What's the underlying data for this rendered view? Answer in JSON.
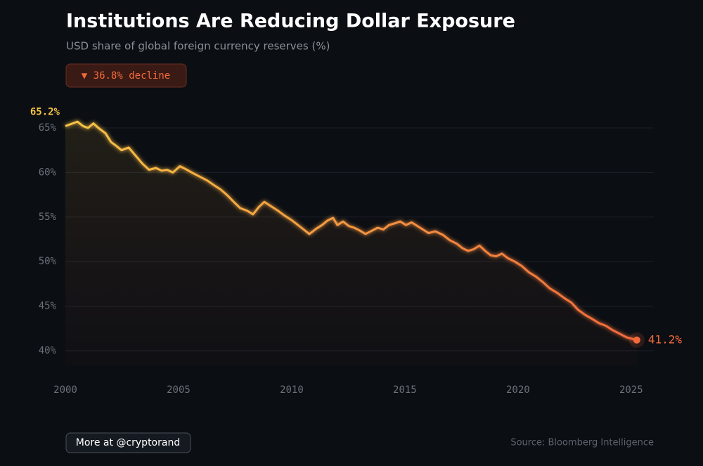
{
  "chart_data": {
    "type": "line",
    "title": "Institutions Are Reducing Dollar Exposure",
    "subtitle": "USD share of global foreign currency reserves (%)",
    "annotation": "▼ 36.8% decline",
    "x": [
      2000,
      2000.53,
      2000.78,
      2001.0,
      2001.24,
      2001.46,
      2001.77,
      2002.02,
      2002.24,
      2002.48,
      2002.8,
      2003.1,
      2003.4,
      2003.7,
      2004.0,
      2004.25,
      2004.5,
      2004.75,
      2005.06,
      2005.3,
      2005.65,
      2005.96,
      2006.27,
      2006.55,
      2006.86,
      2007.17,
      2007.48,
      2007.73,
      2008.04,
      2008.29,
      2008.54,
      2008.79,
      2009.1,
      2009.4,
      2009.66,
      2009.97,
      2010.28,
      2010.53,
      2010.78,
      2011.09,
      2011.34,
      2011.58,
      2011.83,
      2012.02,
      2012.27,
      2012.52,
      2012.76,
      2013.0,
      2013.26,
      2013.57,
      2013.8,
      2014.05,
      2014.3,
      2014.56,
      2014.8,
      2015.05,
      2015.3,
      2015.55,
      2015.8,
      2016.05,
      2016.35,
      2016.68,
      2016.99,
      2017.3,
      2017.55,
      2017.8,
      2018.05,
      2018.3,
      2018.55,
      2018.8,
      2019.04,
      2019.29,
      2019.54,
      2019.86,
      2020.17,
      2020.48,
      2020.8,
      2021.1,
      2021.4,
      2021.73,
      2022.05,
      2022.36,
      2022.65,
      2022.98,
      2023.26,
      2023.57,
      2023.88,
      2024.19,
      2024.5,
      2024.8,
      2025.25
    ],
    "series": [
      {
        "values": [
          65.2,
          65.7,
          65.2,
          65.0,
          65.5,
          65.0,
          64.4,
          63.4,
          63.0,
          62.5,
          62.8,
          61.9,
          61.0,
          60.3,
          60.5,
          60.2,
          60.3,
          60.0,
          60.7,
          60.4,
          59.9,
          59.5,
          59.1,
          58.6,
          58.1,
          57.4,
          56.6,
          56.0,
          55.7,
          55.3,
          56.1,
          56.7,
          56.2,
          55.7,
          55.2,
          54.7,
          54.1,
          53.6,
          53.1,
          53.7,
          54.1,
          54.6,
          54.9,
          54.1,
          54.5,
          54.0,
          53.8,
          53.5,
          53.1,
          53.5,
          53.8,
          53.6,
          54.1,
          54.3,
          54.5,
          54.1,
          54.4,
          54.0,
          53.6,
          53.2,
          53.4,
          53.0,
          52.4,
          52.0,
          51.5,
          51.2,
          51.4,
          51.8,
          51.2,
          50.7,
          50.6,
          50.9,
          50.4,
          50.0,
          49.5,
          48.8,
          48.3,
          47.7,
          47.0,
          46.5,
          45.9,
          45.4,
          44.6,
          44.0,
          43.6,
          43.1,
          42.8,
          42.3,
          41.9,
          41.5,
          41.2
        ],
        "value_labels": [
          "65.2%",
          null,
          null,
          null,
          null,
          null,
          null,
          null,
          null,
          null,
          null,
          null,
          null,
          null,
          null,
          null,
          null,
          null,
          null,
          null,
          null,
          null,
          null,
          null,
          null,
          null,
          null,
          null,
          null,
          null,
          null,
          null,
          null,
          null,
          null,
          null,
          null,
          null,
          null,
          null,
          null,
          null,
          null,
          null,
          null,
          null,
          null,
          null,
          null,
          null,
          null,
          null,
          null,
          null,
          null,
          null,
          null,
          null,
          null,
          null,
          null,
          null,
          null,
          null,
          null,
          null,
          null,
          null,
          null,
          null,
          null,
          null,
          null,
          null,
          null,
          null,
          null,
          null,
          null,
          null,
          null,
          null,
          null,
          null,
          null,
          null,
          null,
          null,
          null,
          null,
          "41.2%"
        ],
        "color_start": "#f6c445",
        "color_end": "#f26a3b"
      }
    ],
    "xlim": [
      2000,
      2026
    ],
    "xticks": [
      2000,
      2005,
      2010,
      2015,
      2020,
      2025
    ],
    "ylim": [
      38.4,
      66.4
    ],
    "yticks": [
      {
        "value": 40,
        "label": "40%"
      },
      {
        "value": 45,
        "label": "45%"
      },
      {
        "value": 50,
        "label": "50%"
      },
      {
        "value": 55,
        "label": "55%"
      },
      {
        "value": 60,
        "label": "60%"
      },
      {
        "value": 65,
        "label": "65%"
      }
    ],
    "grid": true,
    "link": "More at @cryptorand",
    "source": "Source: Bloomberg Intelligence"
  }
}
